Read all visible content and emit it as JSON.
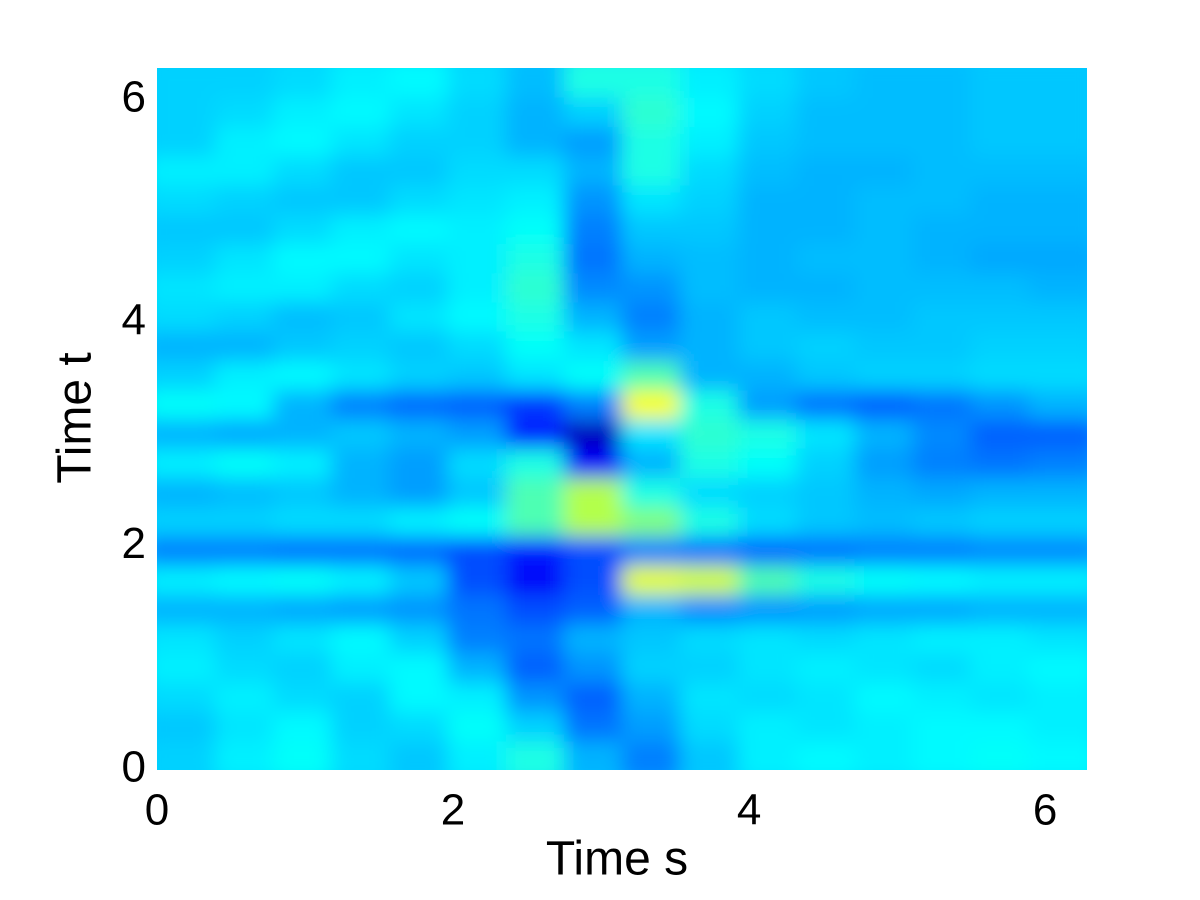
{
  "chart_data": {
    "type": "heatmap",
    "colormap": "jet",
    "clim": [
      0,
      1
    ],
    "x_label": "Time s",
    "y_label": "Time t",
    "xlim": [
      0,
      6.2832
    ],
    "ylim": [
      0,
      6.2832
    ],
    "xticks": [
      0,
      2,
      4,
      6
    ],
    "yticks": [
      0,
      2,
      4,
      6
    ],
    "x": [
      0.196,
      0.589,
      0.982,
      1.374,
      1.767,
      2.16,
      2.553,
      2.945,
      3.338,
      3.731,
      4.123,
      4.516,
      4.909,
      5.301,
      5.694,
      6.087
    ],
    "y": [
      0.131,
      0.393,
      0.654,
      0.916,
      1.178,
      1.44,
      1.702,
      1.963,
      2.225,
      2.487,
      2.749,
      3.011,
      3.272,
      3.534,
      3.796,
      4.058,
      4.32,
      4.581,
      4.843,
      5.105,
      5.367,
      5.629,
      5.89,
      6.152
    ],
    "z": [
      [
        0.33,
        0.36,
        0.38,
        0.34,
        0.32,
        0.36,
        0.4,
        0.3,
        0.25,
        0.32,
        0.36,
        0.37,
        0.36,
        0.37,
        0.38,
        0.37
      ],
      [
        0.32,
        0.35,
        0.37,
        0.33,
        0.34,
        0.38,
        0.33,
        0.24,
        0.28,
        0.34,
        0.36,
        0.35,
        0.36,
        0.37,
        0.37,
        0.36
      ],
      [
        0.34,
        0.36,
        0.34,
        0.33,
        0.37,
        0.36,
        0.27,
        0.22,
        0.3,
        0.35,
        0.34,
        0.35,
        0.37,
        0.36,
        0.35,
        0.36
      ],
      [
        0.36,
        0.34,
        0.33,
        0.36,
        0.37,
        0.3,
        0.22,
        0.27,
        0.33,
        0.33,
        0.35,
        0.36,
        0.35,
        0.34,
        0.36,
        0.37
      ],
      [
        0.35,
        0.33,
        0.35,
        0.37,
        0.33,
        0.25,
        0.24,
        0.3,
        0.32,
        0.34,
        0.35,
        0.34,
        0.35,
        0.36,
        0.36,
        0.35
      ],
      [
        0.3,
        0.3,
        0.29,
        0.28,
        0.27,
        0.24,
        0.2,
        0.22,
        0.3,
        0.26,
        0.27,
        0.28,
        0.29,
        0.29,
        0.3,
        0.3
      ],
      [
        0.36,
        0.37,
        0.38,
        0.36,
        0.32,
        0.2,
        0.12,
        0.2,
        0.6,
        0.58,
        0.45,
        0.4,
        0.38,
        0.37,
        0.36,
        0.36
      ],
      [
        0.25,
        0.25,
        0.24,
        0.24,
        0.23,
        0.2,
        0.15,
        0.2,
        0.25,
        0.24,
        0.23,
        0.24,
        0.25,
        0.25,
        0.26,
        0.26
      ],
      [
        0.33,
        0.33,
        0.34,
        0.34,
        0.36,
        0.38,
        0.45,
        0.55,
        0.5,
        0.4,
        0.34,
        0.32,
        0.31,
        0.32,
        0.33,
        0.33
      ],
      [
        0.3,
        0.31,
        0.32,
        0.3,
        0.28,
        0.32,
        0.45,
        0.55,
        0.4,
        0.34,
        0.33,
        0.32,
        0.3,
        0.29,
        0.3,
        0.3
      ],
      [
        0.36,
        0.38,
        0.36,
        0.3,
        0.28,
        0.34,
        0.4,
        0.12,
        0.3,
        0.4,
        0.38,
        0.33,
        0.28,
        0.25,
        0.24,
        0.25
      ],
      [
        0.3,
        0.29,
        0.3,
        0.32,
        0.3,
        0.28,
        0.15,
        0.06,
        0.35,
        0.42,
        0.4,
        0.35,
        0.3,
        0.26,
        0.22,
        0.22
      ],
      [
        0.38,
        0.37,
        0.3,
        0.25,
        0.23,
        0.22,
        0.18,
        0.25,
        0.62,
        0.4,
        0.28,
        0.24,
        0.22,
        0.24,
        0.27,
        0.3
      ],
      [
        0.33,
        0.36,
        0.37,
        0.35,
        0.33,
        0.32,
        0.35,
        0.38,
        0.45,
        0.3,
        0.3,
        0.32,
        0.33,
        0.33,
        0.34,
        0.34
      ],
      [
        0.3,
        0.3,
        0.32,
        0.33,
        0.32,
        0.34,
        0.38,
        0.35,
        0.28,
        0.3,
        0.32,
        0.33,
        0.32,
        0.32,
        0.33,
        0.33
      ],
      [
        0.34,
        0.33,
        0.31,
        0.32,
        0.35,
        0.37,
        0.4,
        0.3,
        0.25,
        0.3,
        0.32,
        0.31,
        0.31,
        0.32,
        0.32,
        0.32
      ],
      [
        0.35,
        0.36,
        0.36,
        0.34,
        0.33,
        0.36,
        0.42,
        0.26,
        0.27,
        0.31,
        0.3,
        0.3,
        0.31,
        0.31,
        0.31,
        0.3
      ],
      [
        0.33,
        0.35,
        0.37,
        0.37,
        0.35,
        0.36,
        0.4,
        0.24,
        0.3,
        0.31,
        0.3,
        0.31,
        0.31,
        0.3,
        0.29,
        0.29
      ],
      [
        0.32,
        0.32,
        0.34,
        0.36,
        0.37,
        0.36,
        0.38,
        0.25,
        0.32,
        0.32,
        0.3,
        0.3,
        0.31,
        0.3,
        0.3,
        0.3
      ],
      [
        0.34,
        0.33,
        0.32,
        0.32,
        0.34,
        0.35,
        0.36,
        0.27,
        0.35,
        0.33,
        0.3,
        0.3,
        0.31,
        0.31,
        0.3,
        0.3
      ],
      [
        0.36,
        0.36,
        0.34,
        0.32,
        0.32,
        0.34,
        0.34,
        0.3,
        0.4,
        0.34,
        0.31,
        0.3,
        0.3,
        0.31,
        0.31,
        0.31
      ],
      [
        0.33,
        0.36,
        0.37,
        0.35,
        0.33,
        0.33,
        0.3,
        0.28,
        0.4,
        0.36,
        0.32,
        0.31,
        0.31,
        0.31,
        0.32,
        0.32
      ],
      [
        0.33,
        0.34,
        0.36,
        0.37,
        0.35,
        0.33,
        0.3,
        0.33,
        0.42,
        0.37,
        0.33,
        0.31,
        0.31,
        0.31,
        0.32,
        0.32
      ],
      [
        0.33,
        0.33,
        0.34,
        0.36,
        0.37,
        0.34,
        0.31,
        0.4,
        0.4,
        0.36,
        0.34,
        0.32,
        0.31,
        0.31,
        0.32,
        0.32
      ]
    ]
  }
}
